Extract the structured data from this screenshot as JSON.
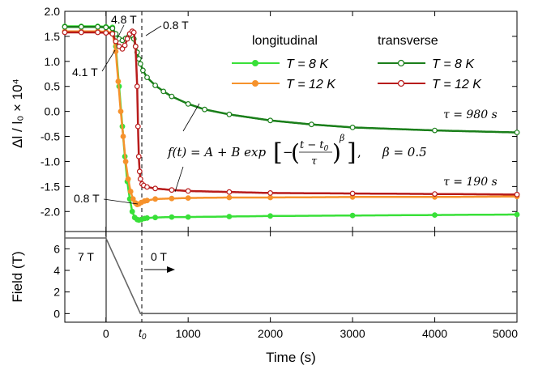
{
  "chart_data": [
    {
      "type": "line",
      "panel": "top",
      "xlabel": "",
      "ylabel": "Δl / l₀ × 10⁴",
      "xlim": [
        -500,
        5000
      ],
      "ylim": [
        -2.4,
        2.0
      ],
      "yticks": [
        "2.0",
        "1.5",
        "1.0",
        "0.5",
        "0.0",
        "-0.5",
        "-1.0",
        "-1.5",
        "-2.0"
      ],
      "ytick_values": [
        2.0,
        1.5,
        1.0,
        0.5,
        0.0,
        -0.5,
        -1.0,
        -1.5,
        -2.0
      ],
      "legend": {
        "group_headers": [
          "longitudinal",
          "transverse"
        ],
        "entries": [
          "T = 8 K",
          "T = 12 K",
          "T = 8 K",
          "T = 12 K"
        ]
      },
      "series": [
        {
          "name": "longitudinal T = 8 K",
          "color": "#39e039",
          "marker": "filled-circle",
          "x": [
            -500,
            -300,
            -100,
            0,
            80,
            120,
            160,
            200,
            230,
            260,
            290,
            320,
            350,
            380,
            400,
            430,
            470,
            500,
            600,
            800,
            1000,
            1500,
            2000,
            3000,
            4000,
            5000
          ],
          "y": [
            1.7,
            1.7,
            1.7,
            1.69,
            1.68,
            1.3,
            0.5,
            -0.3,
            -0.9,
            -1.4,
            -1.75,
            -2.0,
            -2.12,
            -2.16,
            -2.17,
            -2.16,
            -2.14,
            -2.13,
            -2.12,
            -2.11,
            -2.11,
            -2.1,
            -2.09,
            -2.08,
            -2.07,
            -2.06
          ]
        },
        {
          "name": "longitudinal T = 12 K",
          "color": "#f6922c",
          "marker": "filled-circle",
          "x": [
            -500,
            -300,
            -100,
            0,
            80,
            120,
            150,
            180,
            210,
            240,
            270,
            300,
            330,
            360,
            380,
            400,
            430,
            470,
            500,
            600,
            800,
            1000,
            1500,
            2000,
            3000,
            4000,
            5000
          ],
          "y": [
            1.6,
            1.6,
            1.6,
            1.59,
            1.58,
            1.2,
            0.6,
            0.0,
            -0.5,
            -1.0,
            -1.35,
            -1.6,
            -1.75,
            -1.83,
            -1.86,
            -1.85,
            -1.82,
            -1.79,
            -1.78,
            -1.75,
            -1.74,
            -1.73,
            -1.72,
            -1.72,
            -1.71,
            -1.71,
            -1.7
          ]
        },
        {
          "name": "transverse T = 8 K",
          "color": "#1a7f1a",
          "marker": "open-circle",
          "x": [
            -500,
            -300,
            -100,
            0,
            80,
            120,
            160,
            200,
            240,
            280,
            320,
            340,
            360,
            380,
            400,
            420,
            450,
            500,
            600,
            700,
            800,
            1000,
            1200,
            1500,
            2000,
            2500,
            3000,
            4000,
            5000
          ],
          "y": [
            1.69,
            1.69,
            1.69,
            1.68,
            1.66,
            1.55,
            1.45,
            1.42,
            1.46,
            1.5,
            1.52,
            1.45,
            1.3,
            1.18,
            1.05,
            0.95,
            0.82,
            0.68,
            0.52,
            0.4,
            0.3,
            0.15,
            0.04,
            -0.06,
            -0.18,
            -0.26,
            -0.32,
            -0.38,
            -0.42
          ]
        },
        {
          "name": "transverse T = 12 K",
          "color": "#b81c1c",
          "marker": "open-circle",
          "x": [
            -500,
            -300,
            -100,
            0,
            80,
            120,
            160,
            200,
            230,
            260,
            290,
            320,
            340,
            360,
            380,
            390,
            400,
            410,
            420,
            440,
            460,
            500,
            600,
            800,
            1000,
            1500,
            2000,
            3000,
            4000,
            5000
          ],
          "y": [
            1.58,
            1.58,
            1.58,
            1.57,
            1.55,
            1.4,
            1.3,
            1.25,
            1.32,
            1.45,
            1.55,
            1.6,
            1.58,
            1.3,
            0.5,
            -0.3,
            -0.9,
            -1.2,
            -1.35,
            -1.45,
            -1.48,
            -1.51,
            -1.54,
            -1.57,
            -1.59,
            -1.61,
            -1.63,
            -1.64,
            -1.65,
            -1.66
          ]
        }
      ],
      "annotations": [
        "4.8 T",
        "0.8 T",
        "4.1 T",
        "0.8 T",
        "τ = 980 s",
        "τ = 190 s",
        "β = 0.5"
      ],
      "fit_formula": {
        "lhs": "f(t) = A + B exp",
        "exp_sign": "−",
        "num": "t − t",
        "den": "τ",
        "pow": "β",
        "beta": "β = 0.5",
        "tsub": "0"
      }
    },
    {
      "type": "line",
      "panel": "bottom",
      "xlabel": "Time (s)",
      "ylabel": "Field (T)",
      "xlim": [
        -500,
        5000
      ],
      "ylim": [
        -0.8,
        7.6
      ],
      "xticks": [
        "0",
        "1000",
        "2000",
        "3000",
        "4000",
        "5000"
      ],
      "xtick_values": [
        0,
        1000,
        2000,
        3000,
        4000,
        5000
      ],
      "t0_label": "t",
      "t0_sub": "0",
      "t0_value": 420,
      "yticks": [
        "0",
        "2",
        "4",
        "6"
      ],
      "ytick_values": [
        0,
        2,
        4,
        6
      ],
      "series": [
        {
          "name": "",
          "color": "#666666",
          "x": [
            -500,
            0,
            420,
            5000
          ],
          "y": [
            7,
            7,
            0,
            0
          ]
        }
      ],
      "annotations": [
        "7 T",
        "0 T"
      ]
    }
  ]
}
